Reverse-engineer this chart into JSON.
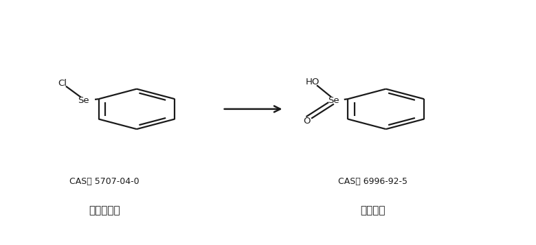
{
  "background_color": "#ffffff",
  "fig_width": 7.8,
  "fig_height": 3.57,
  "dpi": 100,
  "reactant_cas": "CAS： 5707-04-0",
  "reactant_name": "苯基氯化硕",
  "product_cas": "CAS： 6996-92-5",
  "product_name": "苯亚硕酸",
  "cas_fontsize": 9,
  "name_fontsize": 11,
  "mol_color": "#1a1a1a",
  "line_width": 1.6
}
